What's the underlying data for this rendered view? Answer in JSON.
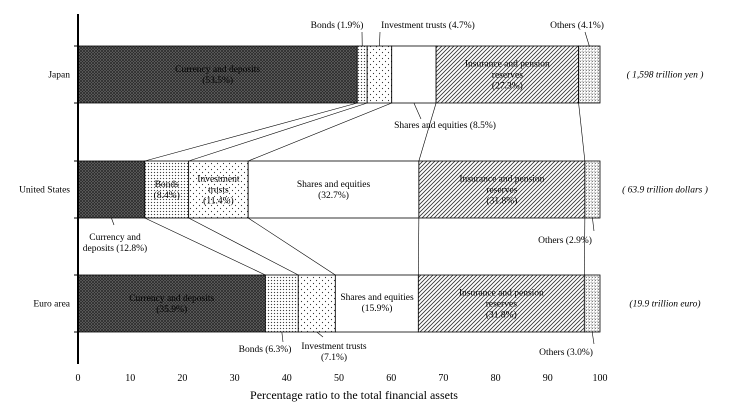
{
  "chart_data": {
    "type": "bar",
    "orientation": "horizontal",
    "stacked": true,
    "xlabel": "Percentage ratio to the total financial assets",
    "xlim": [
      0,
      100
    ],
    "xticks": [
      "0",
      "10",
      "20",
      "30",
      "40",
      "50",
      "60",
      "70",
      "80",
      "90",
      "100"
    ],
    "categories": [
      "Japan",
      "United States",
      "Euro area"
    ],
    "totals": [
      "( 1,598 trillion yen )",
      "( 63.9 trillion dollars )",
      "(19.9 trillion euro)"
    ],
    "series": [
      {
        "name": "Currency and deposits",
        "values": [
          53.5,
          12.8,
          35.9
        ],
        "pattern": "dense-crosshatch",
        "labels": [
          [
            "Currency and deposits",
            "(53.5%)"
          ],
          [
            "Currency and",
            "deposits (12.8%)"
          ],
          [
            "Currency and deposits",
            "(35.9%)"
          ]
        ]
      },
      {
        "name": "Bonds",
        "values": [
          1.9,
          8.4,
          6.3
        ],
        "pattern": "dots",
        "labels": [
          [
            "Bonds (1.9%)"
          ],
          [
            "Bonds",
            "(8.4%)"
          ],
          [
            "Bonds (6.3%)"
          ]
        ]
      },
      {
        "name": "Investment trusts",
        "values": [
          4.7,
          11.4,
          7.1
        ],
        "pattern": "sparse-dots",
        "labels": [
          [
            "Investment trusts (4.7%)"
          ],
          [
            "Investment",
            "trusts",
            "(11.4%)"
          ],
          [
            "Investment trusts",
            "(7.1%)"
          ]
        ]
      },
      {
        "name": "Shares and equities",
        "values": [
          8.5,
          32.7,
          15.9
        ],
        "pattern": "white",
        "labels": [
          [
            "Shares and equities (8.5%)"
          ],
          [
            "Shares and equities",
            "(32.7%)"
          ],
          [
            "Shares and equities",
            "(15.9%)"
          ]
        ]
      },
      {
        "name": "Insurance and pension reserves",
        "values": [
          27.3,
          31.8,
          31.8
        ],
        "pattern": "diagonal",
        "labels": [
          [
            "Insurance and pension",
            "reserves",
            "(27.3%)"
          ],
          [
            "Insurance and pension",
            "reserves",
            "(31.8%)"
          ],
          [
            "Insurance and pension",
            "reserves",
            "(31.8%)"
          ]
        ]
      },
      {
        "name": "Others",
        "values": [
          4.1,
          2.9,
          3.0
        ],
        "pattern": "grid-dots",
        "labels": [
          [
            "Others (4.1%)"
          ],
          [
            "Others (2.9%)"
          ],
          [
            "Others (3.0%)"
          ]
        ]
      }
    ]
  }
}
